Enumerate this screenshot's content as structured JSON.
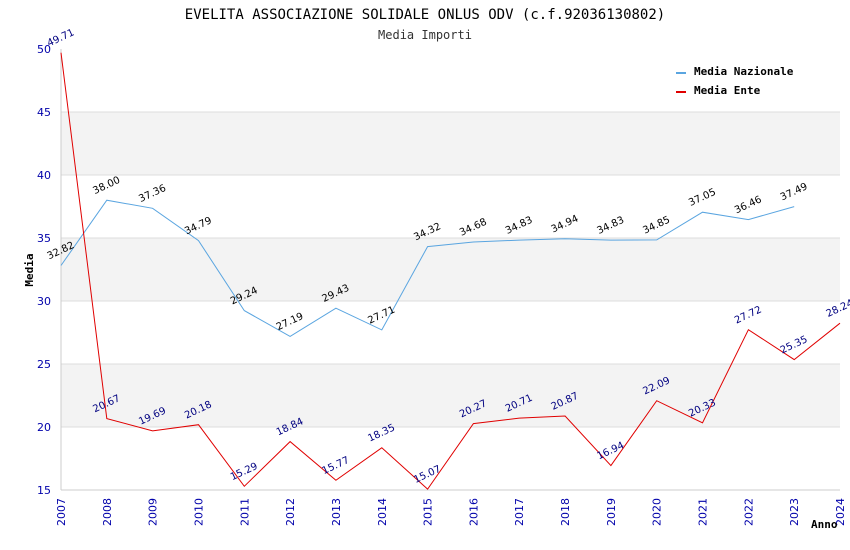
{
  "chart_data": {
    "type": "line",
    "title": "EVELITA ASSOCIAZIONE SOLIDALE ONLUS ODV (c.f.92036130802)",
    "subtitle": "Media Importi",
    "xlabel": "Anno",
    "ylabel": "Media",
    "ylim": [
      15,
      50
    ],
    "yticks": [
      15,
      20,
      25,
      30,
      35,
      40,
      45,
      50
    ],
    "categories": [
      "2007",
      "2008",
      "2009",
      "2010",
      "2011",
      "2012",
      "2013",
      "2014",
      "2015",
      "2016",
      "2017",
      "2018",
      "2019",
      "2020",
      "2021",
      "2022",
      "2023",
      "2024"
    ],
    "grid": "horizontal alternating bands",
    "legend_position": "top-right",
    "series": [
      {
        "name": "Media Nazionale",
        "color": "#5aa5e0",
        "values": [
          32.82,
          38.0,
          37.36,
          34.79,
          29.24,
          27.19,
          29.43,
          27.71,
          34.32,
          34.68,
          34.83,
          34.94,
          34.83,
          34.85,
          37.05,
          36.46,
          37.49,
          null
        ],
        "labels": [
          "32.82",
          "38.00",
          "37.36",
          "34.79",
          "29.24",
          "27.19",
          "29.43",
          "27.71",
          "34.32",
          "34.68",
          "34.83",
          "34.94",
          "34.83",
          "34.85",
          "37.05",
          "36.46",
          "37.49",
          ""
        ]
      },
      {
        "name": "Media Ente",
        "color": "#e00000",
        "values": [
          49.71,
          20.67,
          19.69,
          20.18,
          15.29,
          18.84,
          15.77,
          18.35,
          15.07,
          20.27,
          20.71,
          20.87,
          16.94,
          22.09,
          20.33,
          27.72,
          25.35,
          28.24
        ],
        "labels": [
          "49.71",
          "20.67",
          "19.69",
          "20.18",
          "15.29",
          "18.84",
          "15.77",
          "18.35",
          "15.07",
          "20.27",
          "20.71",
          "20.87",
          "16.94",
          "22.09",
          "20.33",
          "27.72",
          "25.35",
          "28.24"
        ]
      }
    ]
  }
}
